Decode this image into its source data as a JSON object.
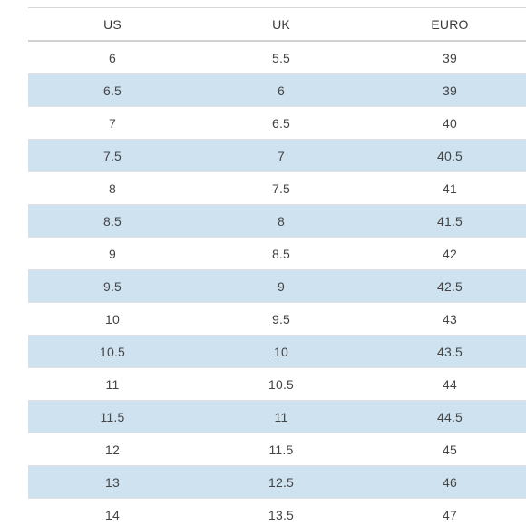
{
  "size_chart": {
    "columns": [
      "US",
      "UK",
      "EURO"
    ],
    "rows": [
      [
        "6",
        "5.5",
        "39"
      ],
      [
        "6.5",
        "6",
        "39"
      ],
      [
        "7",
        "6.5",
        "40"
      ],
      [
        "7.5",
        "7",
        "40.5"
      ],
      [
        "8",
        "7.5",
        "41"
      ],
      [
        "8.5",
        "8",
        "41.5"
      ],
      [
        "9",
        "8.5",
        "42"
      ],
      [
        "9.5",
        "9",
        "42.5"
      ],
      [
        "10",
        "9.5",
        "43"
      ],
      [
        "10.5",
        "10",
        "43.5"
      ],
      [
        "11",
        "10.5",
        "44"
      ],
      [
        "11.5",
        "11",
        "44.5"
      ],
      [
        "12",
        "11.5",
        "45"
      ],
      [
        "13",
        "12.5",
        "46"
      ],
      [
        "14",
        "13.5",
        "47"
      ]
    ]
  },
  "colors": {
    "stripe": "#cfe2f0",
    "text": "#444444"
  }
}
